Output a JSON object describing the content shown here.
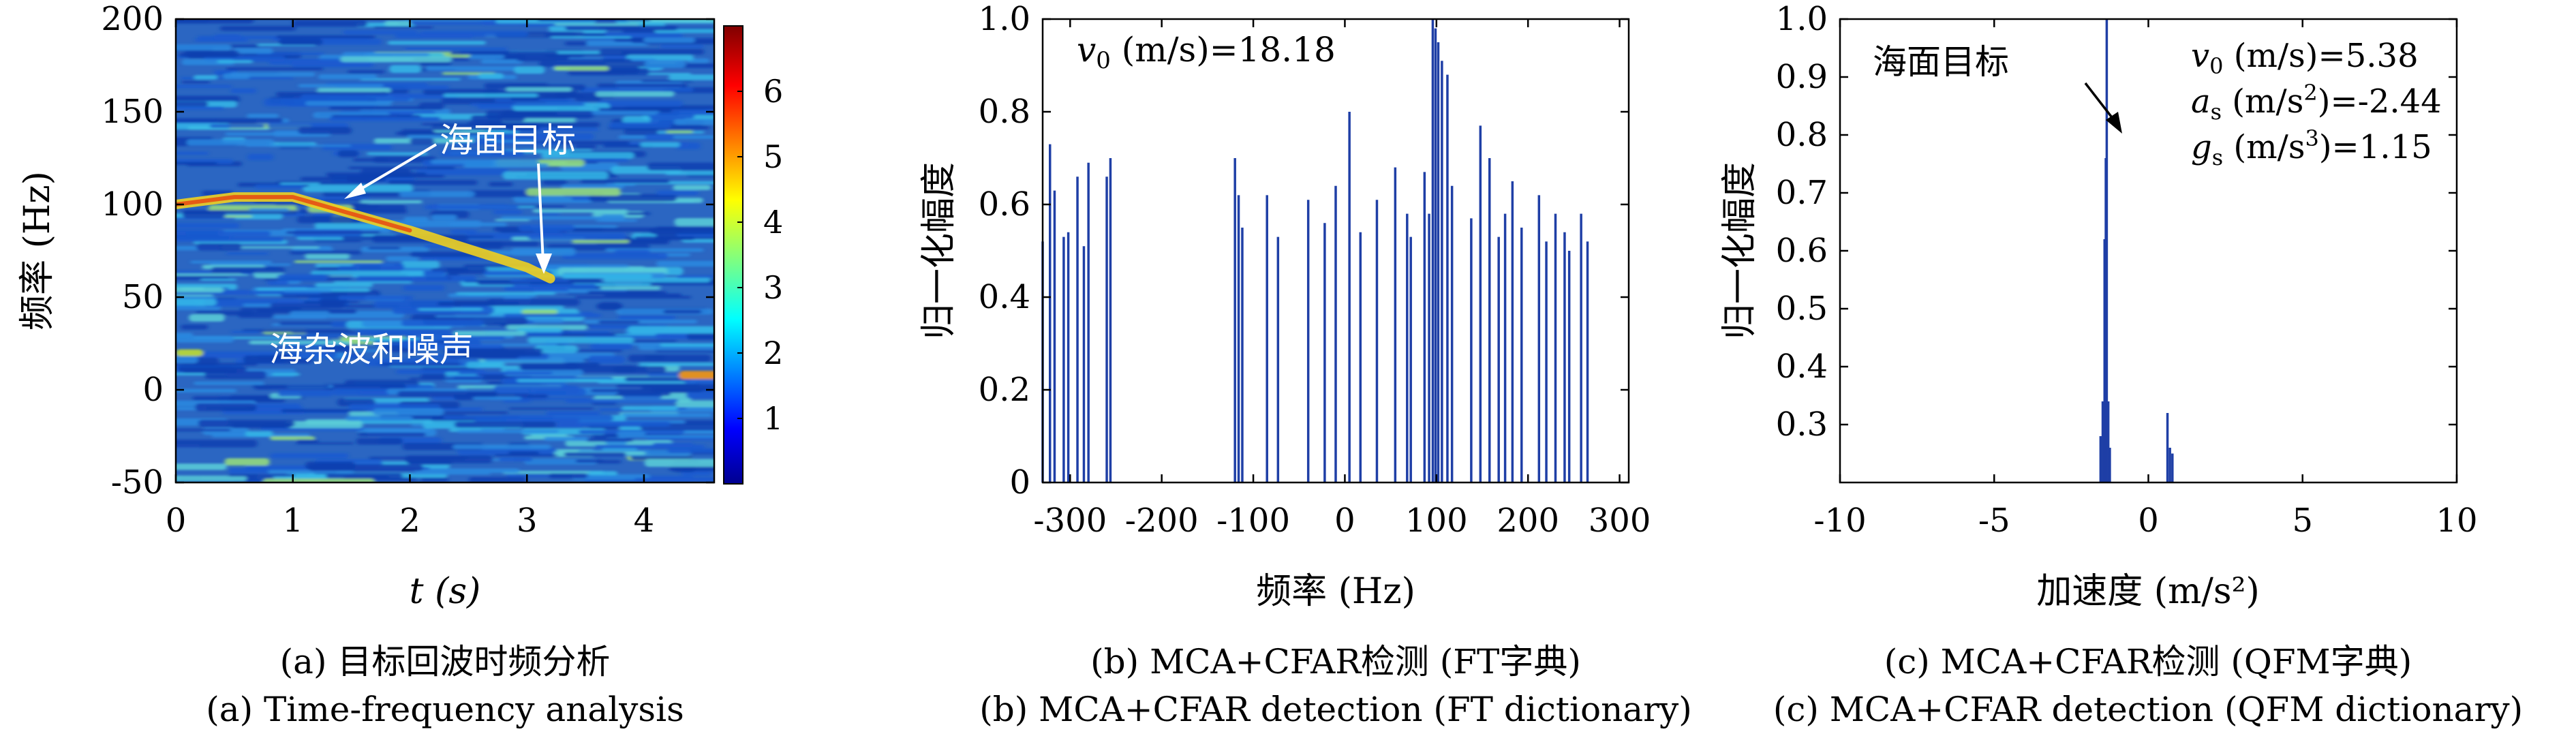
{
  "colors": {
    "axis": "#000000",
    "line": "#1f3fa6",
    "annot_white": "#ffffff",
    "annot_black": "#000000"
  },
  "chart_data": [
    {
      "id": "a",
      "type": "heatmap",
      "title": "",
      "xlabel": "t (s)",
      "ylabel": "频率 (Hz)",
      "xlim": [
        0,
        4.6
      ],
      "ylim": [
        -50,
        200
      ],
      "x_ticks": [
        "0",
        "1",
        "2",
        "3",
        "4"
      ],
      "x_tick_values": [
        0,
        1,
        2,
        3,
        4
      ],
      "y_ticks": [
        "-50",
        "0",
        "50",
        "100",
        "150",
        "200"
      ],
      "y_tick_values": [
        -50,
        0,
        50,
        100,
        150,
        200
      ],
      "colorbar": {
        "range": [
          0,
          7
        ],
        "ticks": [
          "1",
          "2",
          "3",
          "4",
          "5",
          "6"
        ],
        "tick_values": [
          1,
          2,
          3,
          4,
          5,
          6
        ],
        "colormap": "jet"
      },
      "target_track": [
        [
          0,
          100
        ],
        [
          0.5,
          104
        ],
        [
          1.0,
          104
        ],
        [
          1.5,
          95
        ],
        [
          2.0,
          86
        ],
        [
          2.5,
          76
        ],
        [
          3.0,
          66
        ],
        [
          3.2,
          60
        ]
      ],
      "annotations": [
        {
          "text": "海面目标",
          "color": "white"
        },
        {
          "text": "海杂波和噪声",
          "color": "white"
        }
      ],
      "captions": [
        "(a) 目标回波时频分析",
        "(a) Time-frequency analysis"
      ]
    },
    {
      "id": "b",
      "type": "bar",
      "xlabel": "频率 (Hz)",
      "ylabel": "归一化幅度",
      "xlim": [
        -330,
        310
      ],
      "ylim": [
        0,
        1
      ],
      "x_ticks": [
        "-300",
        "-200",
        "-100",
        "0",
        "100",
        "200",
        "300"
      ],
      "x_tick_values": [
        -300,
        -200,
        -100,
        0,
        100,
        200,
        300
      ],
      "y_ticks": [
        "0",
        "0.2",
        "0.4",
        "0.6",
        "0.8",
        "1.0"
      ],
      "y_tick_values": [
        0,
        0.2,
        0.4,
        0.6,
        0.8,
        1.0
      ],
      "annotation_var": "v",
      "annotation_sub": "0",
      "annotation_text": " (m/s)=18.18",
      "stems": [
        [
          -330,
          0.52
        ],
        [
          -322,
          0.73
        ],
        [
          -317,
          0.63
        ],
        [
          -307,
          0.53
        ],
        [
          -302,
          0.54
        ],
        [
          -292,
          0.66
        ],
        [
          -285,
          0.51
        ],
        [
          -280,
          0.69
        ],
        [
          -260,
          0.66
        ],
        [
          -256,
          0.7
        ],
        [
          -120,
          0.7
        ],
        [
          -116,
          0.62
        ],
        [
          -112,
          0.55
        ],
        [
          -85,
          0.62
        ],
        [
          -73,
          0.53
        ],
        [
          -40,
          0.61
        ],
        [
          -22,
          0.56
        ],
        [
          -10,
          0.64
        ],
        [
          5,
          0.8
        ],
        [
          17,
          0.54
        ],
        [
          35,
          0.61
        ],
        [
          55,
          0.68
        ],
        [
          68,
          0.58
        ],
        [
          72,
          0.53
        ],
        [
          87,
          0.67
        ],
        [
          92,
          0.58
        ],
        [
          96,
          1.0
        ],
        [
          99,
          0.98
        ],
        [
          102,
          0.95
        ],
        [
          106,
          0.91
        ],
        [
          112,
          0.88
        ],
        [
          117,
          0.64
        ],
        [
          138,
          0.57
        ],
        [
          148,
          0.77
        ],
        [
          158,
          0.7
        ],
        [
          168,
          0.53
        ],
        [
          175,
          0.58
        ],
        [
          183,
          0.65
        ],
        [
          193,
          0.55
        ],
        [
          212,
          0.62
        ],
        [
          220,
          0.52
        ],
        [
          230,
          0.58
        ],
        [
          240,
          0.54
        ],
        [
          245,
          0.5
        ],
        [
          258,
          0.58
        ],
        [
          265,
          0.52
        ]
      ],
      "captions": [
        "(b) MCA+CFAR检测 (FT字典)",
        "(b) MCA+CFAR detection (FT dictionary)"
      ]
    },
    {
      "id": "c",
      "type": "bar",
      "xlabel": "加速度 (m/s²)",
      "ylabel": "归一化幅度",
      "xlim": [
        -10,
        10
      ],
      "ylim": [
        0.2,
        1.0
      ],
      "x_ticks": [
        "-10",
        "-5",
        "0",
        "5",
        "10"
      ],
      "x_tick_values": [
        -10,
        -5,
        0,
        5,
        10
      ],
      "y_ticks": [
        "0.3",
        "0.4",
        "0.5",
        "0.6",
        "0.7",
        "0.8",
        "0.9",
        "1.0"
      ],
      "y_tick_values": [
        0.3,
        0.4,
        0.5,
        0.6,
        0.7,
        0.8,
        0.9,
        1.0
      ],
      "stems": [
        [
          -1.55,
          0.28
        ],
        [
          -1.48,
          0.34
        ],
        [
          -1.42,
          0.62
        ],
        [
          -1.38,
          0.76
        ],
        [
          -1.35,
          1.0
        ],
        [
          -1.3,
          0.34
        ],
        [
          -1.25,
          0.26
        ],
        [
          0.62,
          0.32
        ],
        [
          0.7,
          0.26
        ],
        [
          0.78,
          0.25
        ]
      ],
      "annotation_lines": [
        {
          "var": "v",
          "sub": "0",
          "sup": "",
          "unit": " (m/s)",
          "value": "=5.38"
        },
        {
          "var": "a",
          "sub": "s",
          "sup": "2",
          "unit": " (m/s",
          "value": ")=-2.44"
        },
        {
          "var": "g",
          "sub": "s",
          "sup": "3",
          "unit": " (m/s",
          "value": ")=1.15"
        }
      ],
      "target_label": "海面目标",
      "captions": [
        "(c) MCA+CFAR检测 (QFM字典)",
        "(c) MCA+CFAR detection (QFM dictionary)"
      ]
    }
  ]
}
